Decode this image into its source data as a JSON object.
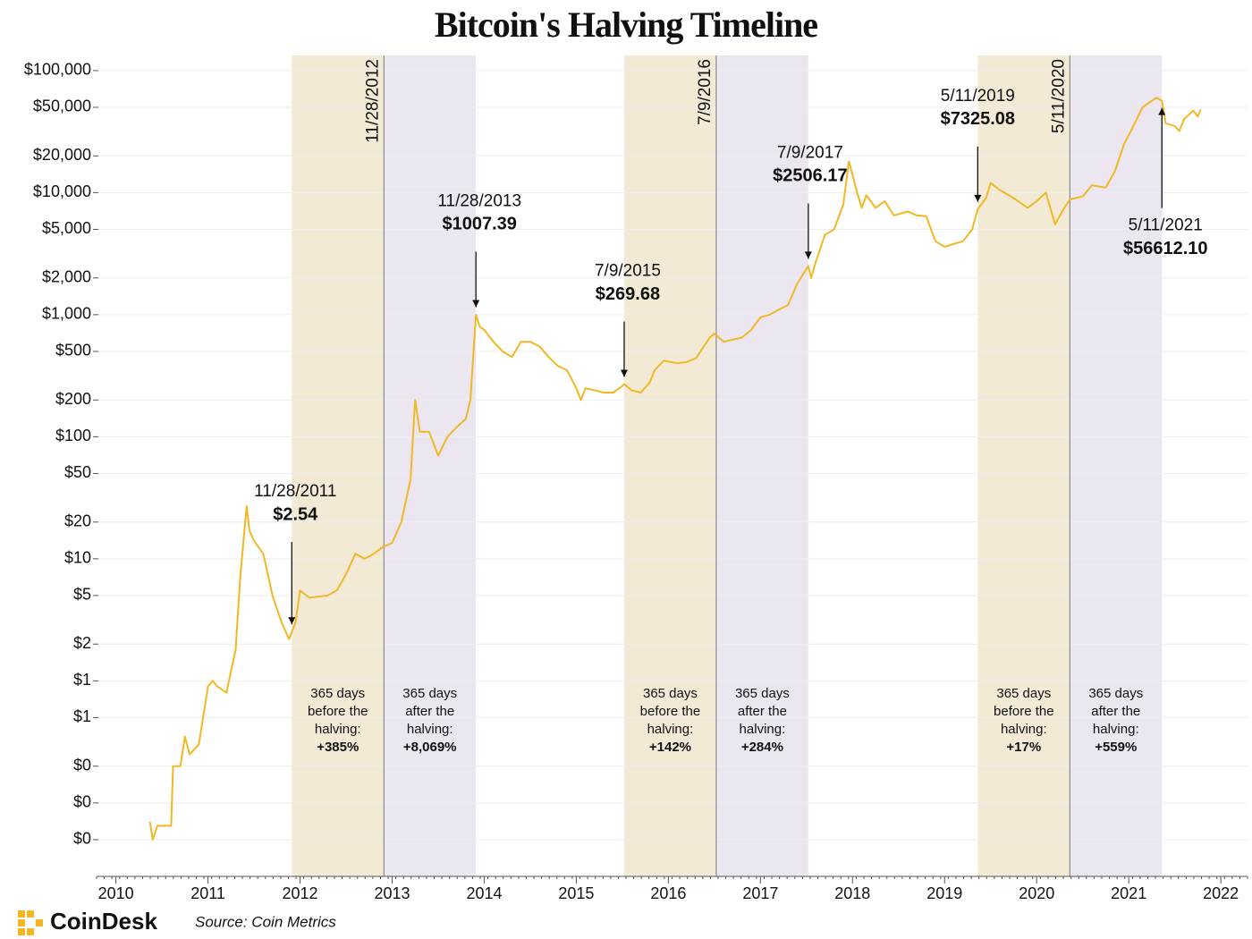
{
  "chart_data": {
    "type": "line",
    "title": "Bitcoin's Halving Timeline",
    "yscale": "log",
    "color": "#f2b724",
    "grid": true,
    "xlim": [
      2009.79,
      2022.29
    ],
    "xticks": [
      2010,
      2011,
      2012,
      2013,
      2014,
      2015,
      2016,
      2017,
      2018,
      2019,
      2020,
      2021,
      2022
    ],
    "ylim": [
      0.025,
      133000
    ],
    "yticks": [
      {
        "value": 100000,
        "label": "$100,000"
      },
      {
        "value": 50000,
        "label": "$50,000"
      },
      {
        "value": 20000,
        "label": "$20,000"
      },
      {
        "value": 10000,
        "label": "$10,000"
      },
      {
        "value": 5000,
        "label": "$5,000"
      },
      {
        "value": 2000,
        "label": "$2,000"
      },
      {
        "value": 1000,
        "label": "$1,000"
      },
      {
        "value": 500,
        "label": "$500"
      },
      {
        "value": 200,
        "label": "$200"
      },
      {
        "value": 100,
        "label": "$100"
      },
      {
        "value": 50,
        "label": "$50"
      },
      {
        "value": 20,
        "label": "$20"
      },
      {
        "value": 10,
        "label": "$10"
      },
      {
        "value": 5,
        "label": "$5"
      },
      {
        "value": 2,
        "label": "$2"
      },
      {
        "value": 1,
        "label": "$1"
      },
      {
        "value": 0.5,
        "label": "$1"
      },
      {
        "value": 0.2,
        "label": "$0"
      },
      {
        "value": 0.1,
        "label": "$0"
      },
      {
        "value": 0.05,
        "label": "$0"
      }
    ],
    "x": [
      2010.37,
      2010.4,
      2010.45,
      2010.6,
      2010.62,
      2010.7,
      2010.75,
      2010.8,
      2010.9,
      2011.0,
      2011.05,
      2011.1,
      2011.2,
      2011.3,
      2011.35,
      2011.42,
      2011.45,
      2011.5,
      2011.6,
      2011.7,
      2011.8,
      2011.88,
      2011.95,
      2012.0,
      2012.1,
      2012.3,
      2012.4,
      2012.5,
      2012.6,
      2012.7,
      2012.8,
      2012.9,
      2013.0,
      2013.1,
      2013.2,
      2013.25,
      2013.3,
      2013.4,
      2013.5,
      2013.6,
      2013.7,
      2013.8,
      2013.85,
      2013.91,
      2013.95,
      2014.0,
      2014.1,
      2014.2,
      2014.3,
      2014.4,
      2014.5,
      2014.6,
      2014.7,
      2014.8,
      2014.9,
      2015.0,
      2015.05,
      2015.1,
      2015.2,
      2015.3,
      2015.4,
      2015.5,
      2015.52,
      2015.6,
      2015.7,
      2015.8,
      2015.85,
      2015.95,
      2016.1,
      2016.2,
      2016.3,
      2016.45,
      2016.5,
      2016.6,
      2016.8,
      2016.9,
      2017.0,
      2017.1,
      2017.2,
      2017.3,
      2017.4,
      2017.52,
      2017.55,
      2017.6,
      2017.7,
      2017.8,
      2017.9,
      2017.96,
      2018.0,
      2018.05,
      2018.1,
      2018.15,
      2018.25,
      2018.35,
      2018.45,
      2018.6,
      2018.7,
      2018.8,
      2018.9,
      2019.0,
      2019.1,
      2019.2,
      2019.3,
      2019.36,
      2019.45,
      2019.5,
      2019.6,
      2019.7,
      2019.8,
      2019.9,
      2020.0,
      2020.1,
      2020.2,
      2020.3,
      2020.36,
      2020.5,
      2020.6,
      2020.75,
      2020.85,
      2020.95,
      2021.05,
      2021.15,
      2021.3,
      2021.36,
      2021.4,
      2021.5,
      2021.55,
      2021.6,
      2021.7,
      2021.75,
      2021.78
    ],
    "values": [
      0.07,
      0.05,
      0.065,
      0.065,
      0.2,
      0.2,
      0.35,
      0.25,
      0.3,
      0.9,
      1.0,
      0.9,
      0.8,
      1.8,
      7,
      27,
      17,
      14,
      11,
      5,
      3,
      2.2,
      3.0,
      5.5,
      4.8,
      5.0,
      5.5,
      7.5,
      11,
      10,
      11,
      12.5,
      13.5,
      20,
      45,
      200,
      110,
      110,
      70,
      100,
      120,
      140,
      200,
      1000,
      800,
      750,
      600,
      500,
      450,
      600,
      600,
      550,
      450,
      380,
      350,
      250,
      200,
      250,
      240,
      230,
      230,
      260,
      270,
      240,
      230,
      280,
      350,
      420,
      400,
      410,
      440,
      650,
      700,
      600,
      650,
      750,
      950,
      1000,
      1100,
      1200,
      1800,
      2506,
      2000,
      2700,
      4500,
      5000,
      8000,
      18000,
      14000,
      10000,
      7500,
      9500,
      7500,
      8500,
      6500,
      7000,
      6500,
      6400,
      4000,
      3600,
      3800,
      4000,
      5000,
      7325,
      9000,
      12000,
      10500,
      9500,
      8500,
      7500,
      8500,
      10000,
      5500,
      7500,
      8800,
      9300,
      11500,
      11000,
      15000,
      25000,
      35000,
      50000,
      60000,
      56612,
      37000,
      35000,
      32000,
      40000,
      47000,
      42000,
      48000
    ],
    "halvings": [
      {
        "date": "11/28/2012",
        "x": 2012.91
      },
      {
        "date": "7/9/2016",
        "x": 2016.52
      },
      {
        "date": "5/11/2020",
        "x": 2020.36
      }
    ],
    "bands": [
      {
        "x": [
          2011.91,
          2012.91
        ],
        "color": "#f3ead6",
        "text": [
          "365 days",
          "before the",
          "halving:",
          "+385%"
        ]
      },
      {
        "x": [
          2012.91,
          2013.91
        ],
        "color": "#ece6f0",
        "text": [
          "365 days",
          "after the",
          "halving:",
          "+8,069%"
        ]
      },
      {
        "x": [
          2015.52,
          2016.52
        ],
        "color": "#f3ead6",
        "text": [
          "365 days",
          "before the",
          "halving:",
          "+142%"
        ]
      },
      {
        "x": [
          2016.52,
          2017.52
        ],
        "color": "#ece6f0",
        "text": [
          "365 days",
          "after the",
          "halving:",
          "+284%"
        ]
      },
      {
        "x": [
          2019.36,
          2020.36
        ],
        "color": "#f3ead6",
        "text": [
          "365 days",
          "before the",
          "halving:",
          "+17%"
        ]
      },
      {
        "x": [
          2020.36,
          2021.36
        ],
        "color": "#ece6f0",
        "text": [
          "365 days",
          "after the",
          "halving:",
          "+559%"
        ]
      }
    ],
    "annotations": [
      {
        "date": "11/28/2011",
        "label": "$2.54",
        "x": 2011.91,
        "y": 2.54,
        "arrow": "down"
      },
      {
        "date": "11/28/2013",
        "label": "$1007.39",
        "x": 2013.91,
        "y": 1007.39,
        "arrow": "down"
      },
      {
        "date": "7/9/2015",
        "label": "$269.68",
        "x": 2015.52,
        "y": 269.68,
        "arrow": "down"
      },
      {
        "date": "7/9/2017",
        "label": "$2506.17",
        "x": 2017.52,
        "y": 2506.17,
        "arrow": "down"
      },
      {
        "date": "5/11/2019",
        "label": "$7325.08",
        "x": 2019.36,
        "y": 7325.08,
        "arrow": "down"
      },
      {
        "date": "5/11/2021",
        "label": "$56612.10",
        "x": 2021.36,
        "y": 56612.1,
        "arrow": "up"
      }
    ],
    "brand": "CoinDesk",
    "source": "Source: Coin Metrics"
  }
}
